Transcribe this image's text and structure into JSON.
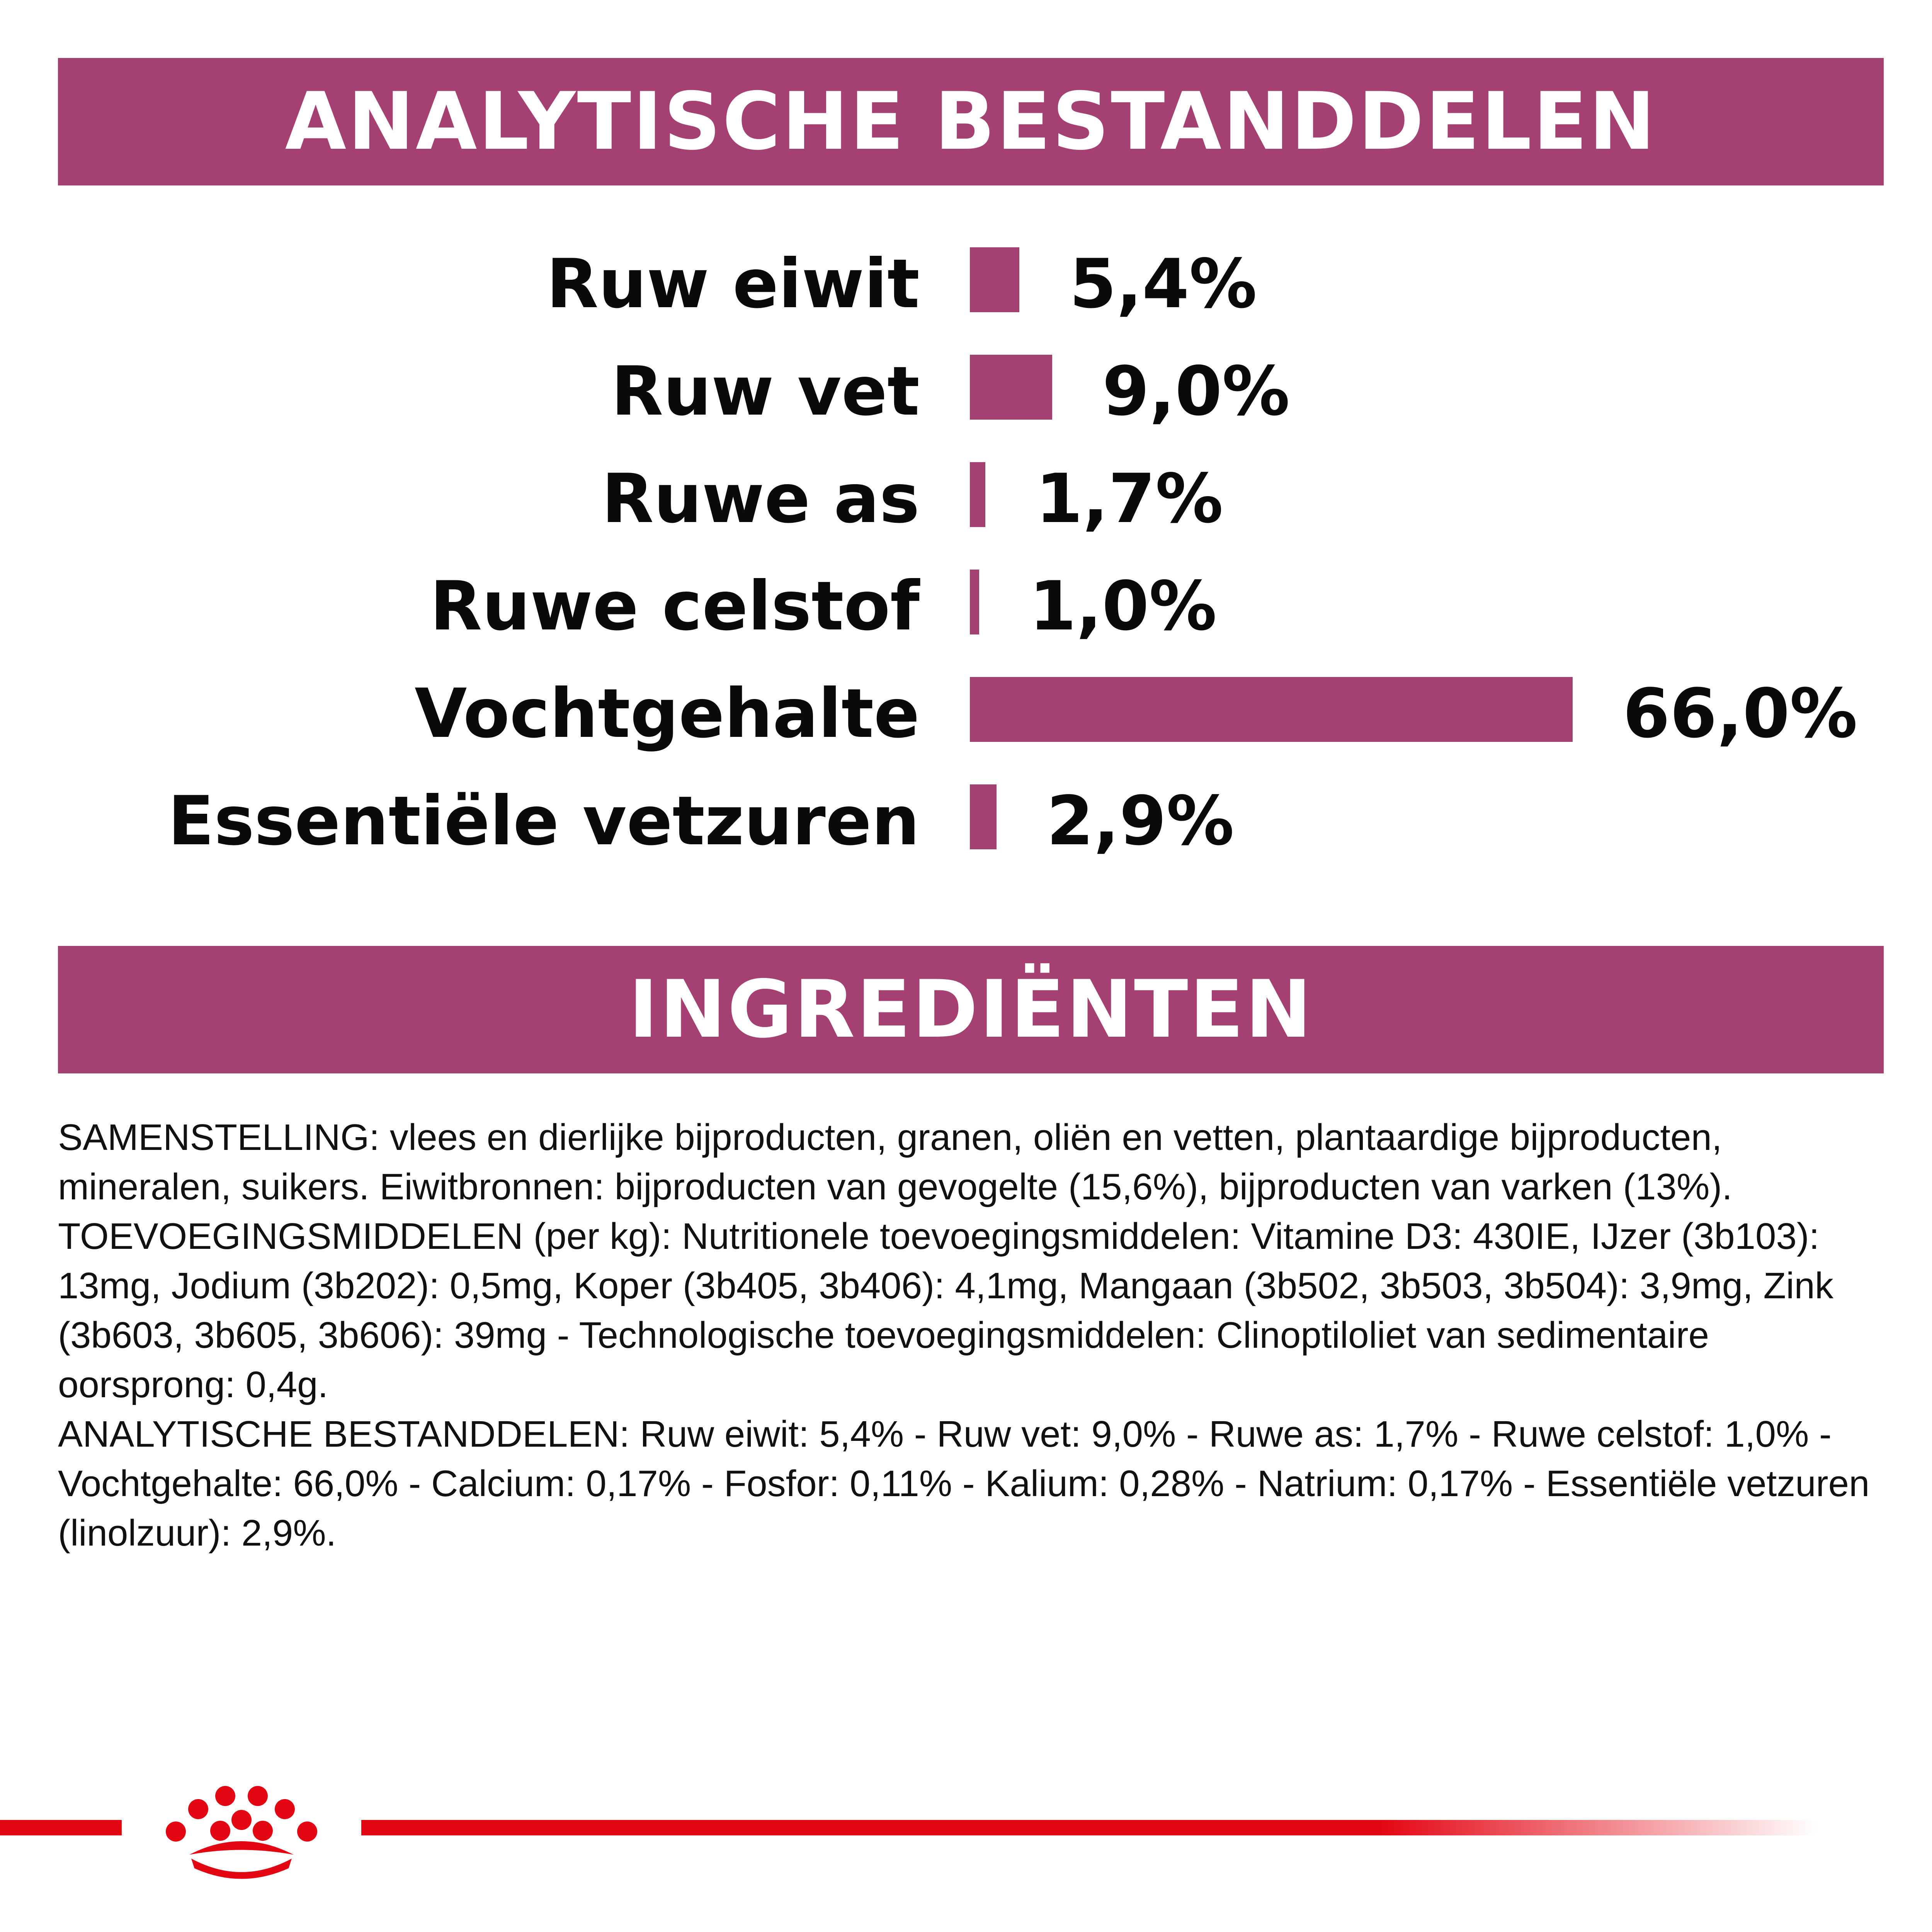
{
  "header": {
    "analytic_title": "ANALYTISCHE BESTANDDELEN",
    "ingredients_title": "INGREDIËNTEN"
  },
  "colors": {
    "accent": "#a54172",
    "brand_red": "#e30613"
  },
  "chart_data": {
    "type": "bar",
    "orientation": "horizontal",
    "title": "ANALYTISCHE BESTANDDELEN",
    "categories": [
      "Ruw eiwit",
      "Ruw vet",
      "Ruwe as",
      "Ruwe celstof",
      "Vochtgehalte",
      "Essentiële vetzuren"
    ],
    "values": [
      5.4,
      9.0,
      1.7,
      1.0,
      66.0,
      2.9
    ],
    "value_labels": [
      "5,4%",
      "9,0%",
      "1,7%",
      "1,0%",
      "66,0%",
      "2,9%"
    ],
    "unit": "%",
    "xlim": [
      0,
      66.0
    ],
    "grid": false,
    "legend": "none"
  },
  "composition": {
    "paragraph_1": "SAMENSTELLING: vlees en dierlijke bijproducten, granen, oliën en vetten, plantaardige bijproducten, mineralen, suikers. Eiwitbronnen: bijproducten van gevogelte (15,6%), bijproducten van varken (13%).",
    "paragraph_2": "TOEVOEGINGSMIDDELEN (per kg): Nutritionele toevoegingsmiddelen: Vitamine D3: 430IE, IJzer (3b103): 13mg, Jodium (3b202): 0,5mg, Koper (3b405, 3b406): 4,1mg, Mangaan (3b502, 3b503, 3b504): 3,9mg, Zink (3b603, 3b605, 3b606): 39mg - Technologische toevoegingsmiddelen: Clinoptiloliet van sedimentaire oorsprong: 0,4g.",
    "paragraph_3": "ANALYTISCHE BESTANDDELEN: Ruw eiwit: 5,4% - Ruw vet: 9,0% - Ruwe as: 1,7% - Ruwe celstof: 1,0% - Vochtgehalte: 66,0% - Calcium: 0,17% - Fosfor: 0,11% - Kalium: 0,28% - Natrium: 0,17% - Essentiële vetzuren (linolzuur): 2,9%."
  },
  "footer": {
    "logo_icon": "royal-canin-crown-icon"
  }
}
